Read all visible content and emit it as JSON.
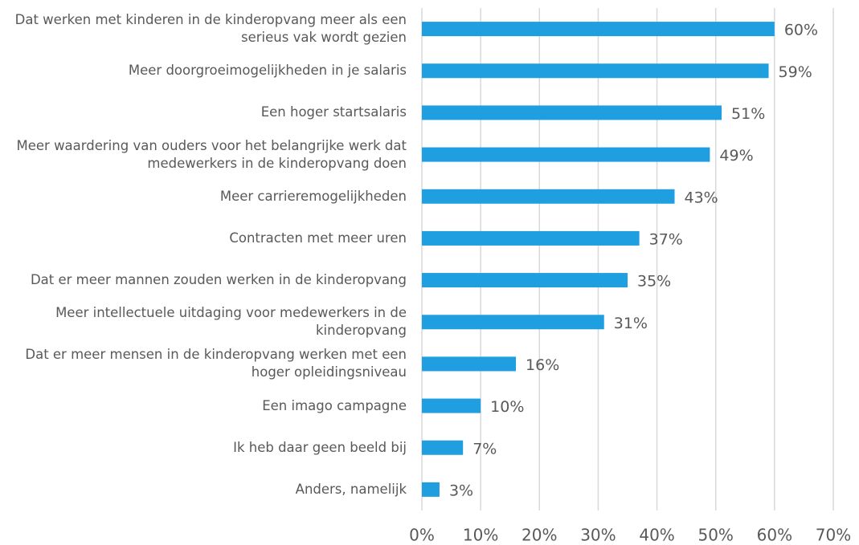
{
  "chart_data": {
    "type": "barh",
    "categories": [
      "Dat werken met kinderen in de kinderopvang meer als een serieus vak wordt gezien",
      "Meer doorgroeimogelijkheden in je salaris",
      "Een hoger startsalaris",
      "Meer waardering van ouders voor het belangrijke werk dat medewerkers in de kinderopvang doen",
      "Meer carrieremogelijkheden",
      "Contracten met meer uren",
      "Dat er meer mannen zouden werken in de kinderopvang",
      "Meer intellectuele uitdaging voor medewerkers in de kinderopvang",
      "Dat er meer mensen in de kinderopvang werken met een hoger opleidingsniveau",
      "Een imago campagne",
      "Ik heb daar geen beeld bij",
      "Anders, namelijk"
    ],
    "values": [
      60,
      59,
      51,
      49,
      43,
      37,
      35,
      31,
      16,
      10,
      7,
      3
    ],
    "value_labels": [
      "60%",
      "59%",
      "51%",
      "49%",
      "43%",
      "37%",
      "35%",
      "31%",
      "16%",
      "10%",
      "7%",
      "3%"
    ],
    "color": "#1f9ee0",
    "xlim": [
      0,
      70
    ],
    "xticks": [
      {
        "value": 0,
        "label": "0%"
      },
      {
        "value": 10,
        "label": "10%"
      },
      {
        "value": 20,
        "label": "20%"
      },
      {
        "value": 30,
        "label": "30%"
      },
      {
        "value": 40,
        "label": "40%"
      },
      {
        "value": 50,
        "label": "50%"
      },
      {
        "value": 60,
        "label": "60%"
      },
      {
        "value": 70,
        "label": "70%"
      }
    ],
    "grid": true
  }
}
